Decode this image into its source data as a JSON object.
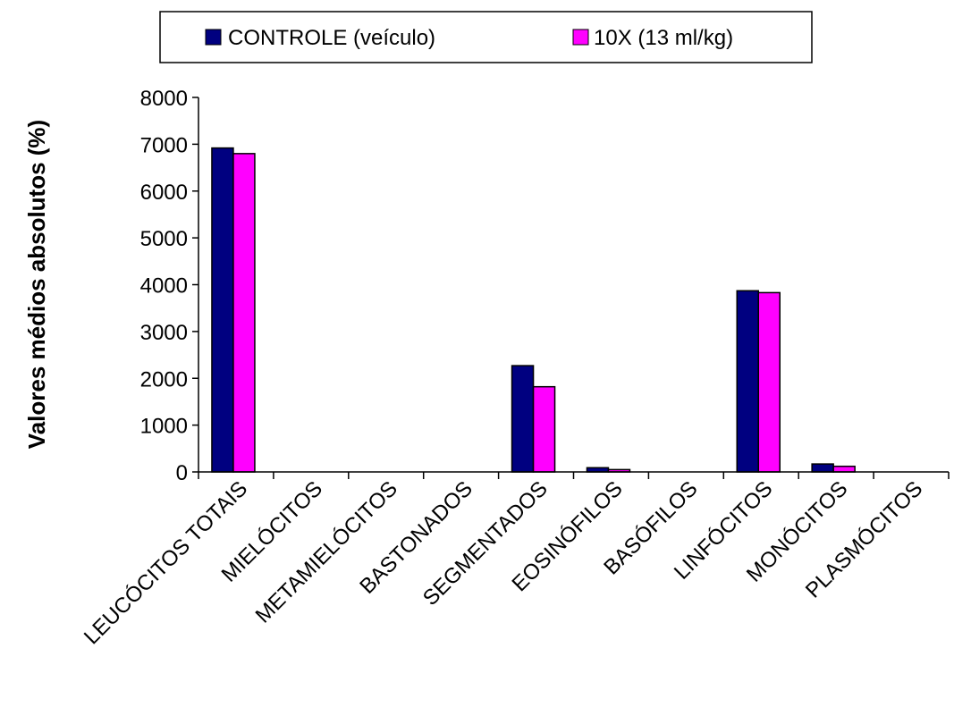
{
  "chart_data": {
    "type": "bar",
    "title": "",
    "xlabel": "",
    "ylabel": "Valores médios absolutos (%)",
    "ylim": [
      0,
      8000
    ],
    "yticks": [
      0,
      1000,
      2000,
      3000,
      4000,
      5000,
      6000,
      7000,
      8000
    ],
    "grid": false,
    "legend_position": "top",
    "categories": [
      "LEUCÓCITOS TOTAIS",
      "MIELÓCITOS",
      "METAMIELÓCITOS",
      "BASTONADOS",
      "SEGMENTADOS",
      "EOSINÓFILOS",
      "BASÓFILOS",
      "LINFÓCITOS",
      "MONÓCITOS",
      "PLASMÓCITOS"
    ],
    "series": [
      {
        "name": "CONTROLE (veículo)",
        "color": "#000080",
        "values": [
          6920,
          0,
          0,
          0,
          2270,
          90,
          0,
          3870,
          170,
          0
        ]
      },
      {
        "name": "10X (13 ml/kg)",
        "color": "#ff00ff",
        "values": [
          6800,
          0,
          0,
          0,
          1820,
          50,
          0,
          3830,
          120,
          0
        ]
      }
    ]
  }
}
